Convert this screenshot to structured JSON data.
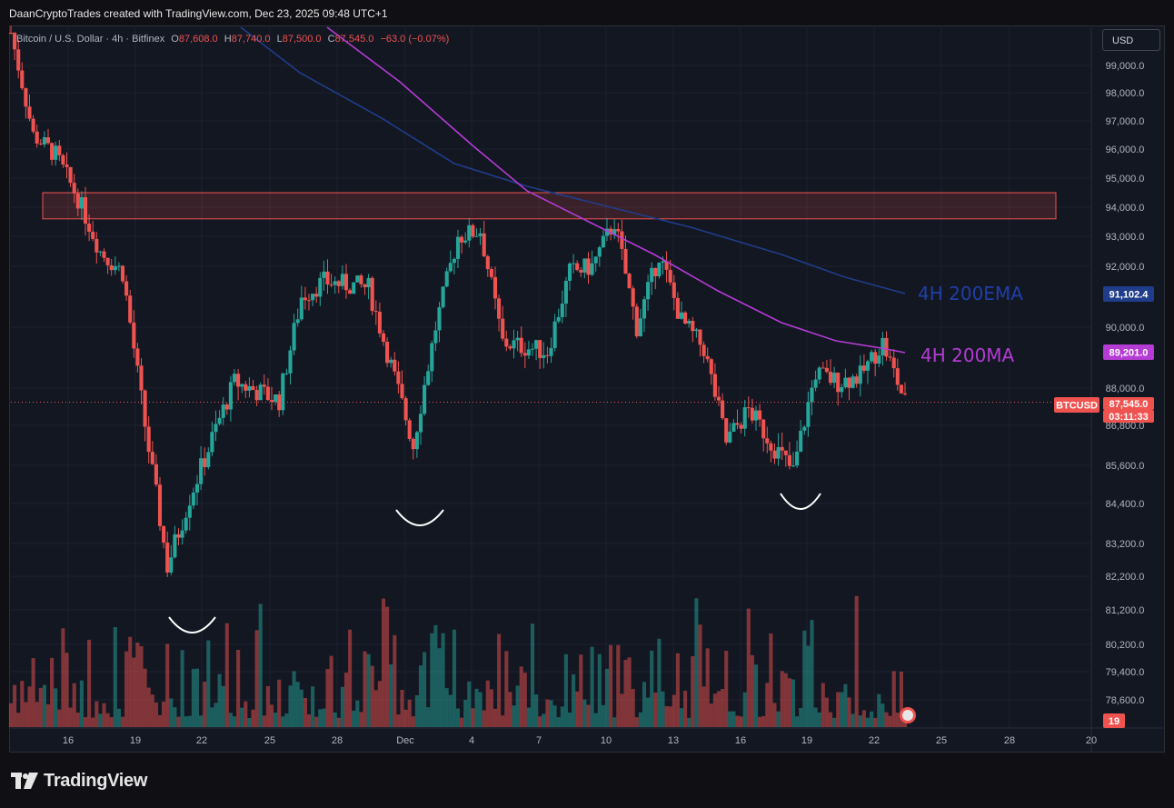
{
  "header": {
    "author_line": "DaanCryptoTrades created with TradingView.com, Dec 23, 2025 09:48 UTC+1"
  },
  "legend": {
    "symbol": "Bitcoin / U.S. Dollar · 4h · Bitfinex",
    "o_label": "O",
    "o_value": "87,608.0",
    "h_label": "H",
    "h_value": "87,740.0",
    "l_label": "L",
    "l_value": "87,500.0",
    "c_label": "C",
    "c_value": "87,545.0",
    "change": "−63.0 (−0.07%)"
  },
  "currency_button": "USD",
  "brand": "TradingView",
  "colors": {
    "up": "#26a69a",
    "down": "#ef5350",
    "ema": "#1f3d8a",
    "ma": "#b43bd4",
    "zone": "#ef5350",
    "grid": "#1e2230",
    "price_line": "#ef5350"
  },
  "chart_data": {
    "type": "candlestick",
    "symbol": "BTCUSD",
    "timeframe": "4h",
    "ylim": [
      77800,
      100800
    ],
    "x_ticks": [
      "16",
      "19",
      "22",
      "25",
      "28",
      "Dec",
      "4",
      "7",
      "10",
      "13",
      "16",
      "19",
      "22",
      "25",
      "28",
      "20"
    ],
    "y_ticks": [
      "99,000.0",
      "98,000.0",
      "97,000.0",
      "96,000.0",
      "95,000.0",
      "94,000.0",
      "93,000.0",
      "92,000.0",
      "90,000.0",
      "88,000.0",
      "86,800.0",
      "85,600.0",
      "84,400.0",
      "83,200.0",
      "82,200.0",
      "81,200.0",
      "80,200.0",
      "79,400.0",
      "78,600.0"
    ],
    "price_path": [
      {
        "date": "Nov 14",
        "close": 100200
      },
      {
        "date": "Nov 15",
        "close": 96500
      },
      {
        "date": "Nov 16",
        "close": 95800
      },
      {
        "date": "Nov 17",
        "close": 94300
      },
      {
        "date": "Nov 18",
        "close": 92500
      },
      {
        "date": "Nov 19",
        "close": 91800
      },
      {
        "date": "Nov 20",
        "close": 86800
      },
      {
        "date": "Nov 21",
        "close": 82500
      },
      {
        "date": "Nov 22",
        "close": 84600
      },
      {
        "date": "Nov 24",
        "close": 88200
      },
      {
        "date": "Nov 26",
        "close": 87600
      },
      {
        "date": "Nov 27",
        "close": 91000
      },
      {
        "date": "Nov 28",
        "close": 91500
      },
      {
        "date": "Nov 30",
        "close": 91300
      },
      {
        "date": "Dec 1",
        "close": 86200
      },
      {
        "date": "Dec 2",
        "close": 90000
      },
      {
        "date": "Dec 3",
        "close": 93000
      },
      {
        "date": "Dec 4",
        "close": 93200
      },
      {
        "date": "Dec 5",
        "close": 89500
      },
      {
        "date": "Dec 7",
        "close": 89200
      },
      {
        "date": "Dec 8",
        "close": 91800
      },
      {
        "date": "Dec 9",
        "close": 92000
      },
      {
        "date": "Dec 10",
        "close": 93500
      },
      {
        "date": "Dec 11",
        "close": 90000
      },
      {
        "date": "Dec 12",
        "close": 92400
      },
      {
        "date": "Dec 13",
        "close": 90200
      },
      {
        "date": "Dec 14",
        "close": 89300
      },
      {
        "date": "Dec 15",
        "close": 86300
      },
      {
        "date": "Dec 16",
        "close": 87300
      },
      {
        "date": "Dec 17",
        "close": 86300
      },
      {
        "date": "Dec 18",
        "close": 85400
      },
      {
        "date": "Dec 19",
        "close": 88500
      },
      {
        "date": "Dec 20",
        "close": 88200
      },
      {
        "date": "Dec 21",
        "close": 88400
      },
      {
        "date": "Dec 22",
        "close": 89500
      },
      {
        "date": "Dec 23",
        "close": 87545
      }
    ],
    "series": [
      {
        "name": "4H 200EMA",
        "last_value": "91,102.4"
      },
      {
        "name": "4H 200MA",
        "last_value": "89,201.0"
      }
    ],
    "resistance_zone": {
      "low": 93600,
      "high": 94500
    },
    "swing_lows": [
      81000,
      84000,
      84600
    ],
    "current_price_label": "BTCUSD",
    "current_price": "87,545.0",
    "countdown": "03:11:33",
    "volume_last": "19",
    "annotations": [
      "4H 200EMA",
      "4H 200MA"
    ]
  }
}
